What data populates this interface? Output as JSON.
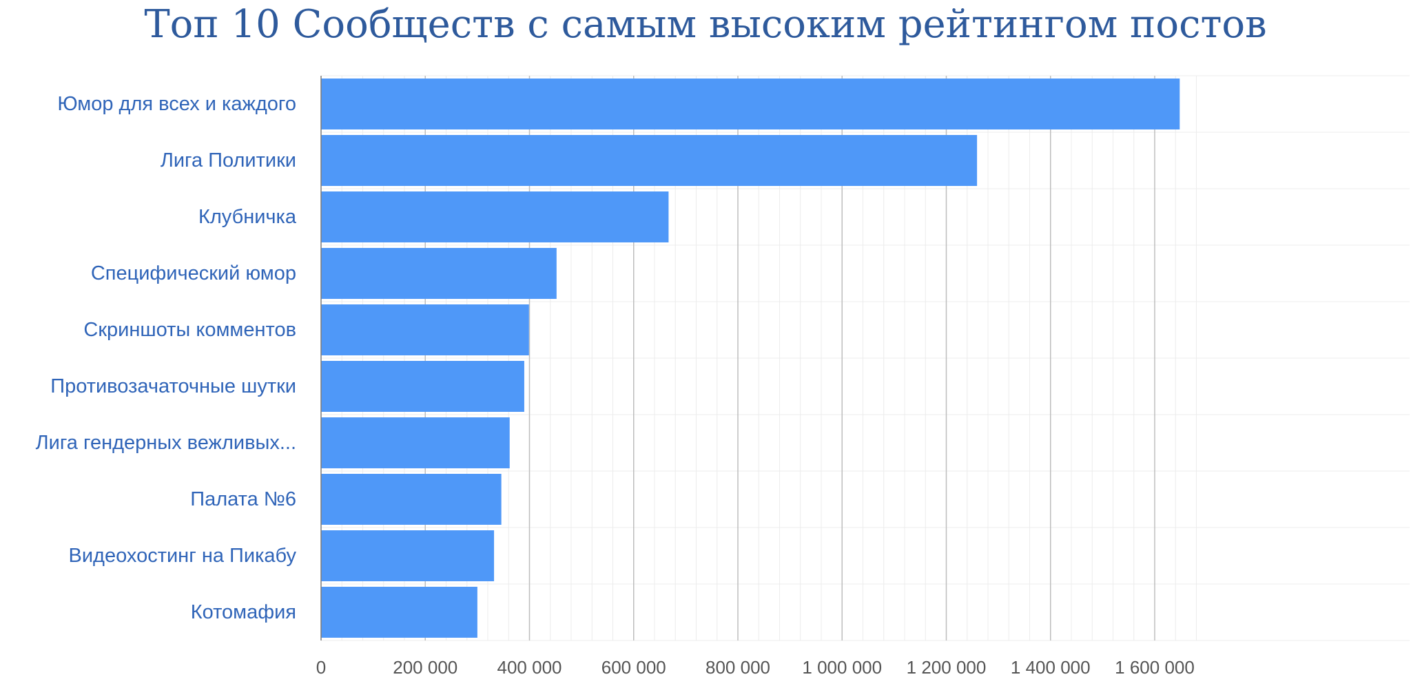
{
  "chart_data": {
    "type": "bar",
    "orientation": "horizontal",
    "title": "Топ 10 Сообществ с самым высоким рейтингом постов",
    "xlabel": "",
    "ylabel": "",
    "categories": [
      "Юмор для всех и каждого",
      "Лига Политики",
      "Клубничка",
      "Специфический юмор",
      "Скриншоты комментов",
      "Противозачаточные шутки",
      "Лига гендерных вежливых...",
      "Палата №6",
      "Видеохостинг на Пикабу",
      "Котомафия"
    ],
    "values": [
      1648000,
      1259000,
      667000,
      452000,
      399000,
      390000,
      362000,
      346000,
      332000,
      300000
    ],
    "xlim": [
      0,
      1700000
    ],
    "ticks": [
      0,
      200000,
      400000,
      600000,
      800000,
      1000000,
      1200000,
      1400000,
      1600000
    ],
    "tick_labels": [
      "0",
      "200 000",
      "400 000",
      "600 000",
      "800 000",
      "1 000 000",
      "1 200 000",
      "1 400 000",
      "1 600 000"
    ],
    "grid": true,
    "legend": "none",
    "colors": {
      "bar": "#4f98f8",
      "title": "#2e5a9c",
      "category_label": "#2f64b8",
      "tick_label": "#555555",
      "major_grid": "#bdbdbd",
      "minor_grid": "#ececec"
    }
  }
}
